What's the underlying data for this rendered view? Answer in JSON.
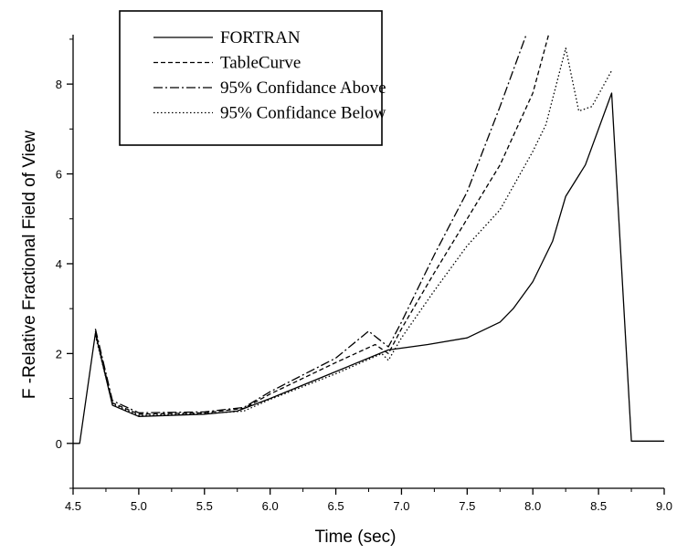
{
  "chart_data": {
    "type": "line",
    "xlabel": "Time (sec)",
    "ylabel": "F -Relative Fractional Field of View",
    "xlim": [
      4.5,
      9.0
    ],
    "ylim": [
      -1,
      9.1
    ],
    "xticks": [
      "4.5",
      "5.0",
      "5.5",
      "6.0",
      "6.5",
      "7.0",
      "7.5",
      "8.0",
      "8.5",
      "9.0"
    ],
    "yticks": [
      "0",
      "2",
      "4",
      "6",
      "8"
    ],
    "grid": false,
    "legend_position": "top-left",
    "series": [
      {
        "name": "FORTRAN",
        "style": "solid",
        "x": [
          4.5,
          4.55,
          4.67,
          4.8,
          5.0,
          5.2,
          5.5,
          5.75,
          6.0,
          6.5,
          6.9,
          7.2,
          7.5,
          7.75,
          7.85,
          8.0,
          8.15,
          8.25,
          8.4,
          8.6,
          8.75,
          9.0
        ],
        "y": [
          0,
          0,
          2.45,
          0.85,
          0.6,
          0.62,
          0.65,
          0.72,
          1.0,
          1.6,
          2.08,
          2.2,
          2.35,
          2.7,
          3.0,
          3.6,
          4.5,
          5.5,
          6.2,
          7.8,
          0.05,
          0.05
        ]
      },
      {
        "name": "TableCurve",
        "style": "dashed",
        "x": [
          4.67,
          4.8,
          5.0,
          5.5,
          5.8,
          6.0,
          6.5,
          6.8,
          6.9,
          7.0,
          7.25,
          7.5,
          7.75,
          8.0,
          8.12
        ],
        "y": [
          2.5,
          0.9,
          0.65,
          0.68,
          0.78,
          1.1,
          1.8,
          2.2,
          2.0,
          2.55,
          3.8,
          5.0,
          6.2,
          7.8,
          9.1
        ]
      },
      {
        "name": "95% Confidance Above",
        "style": "dash-dot",
        "x": [
          4.67,
          4.8,
          5.0,
          5.5,
          5.8,
          6.0,
          6.5,
          6.75,
          6.9,
          7.0,
          7.25,
          7.5,
          7.75,
          7.95
        ],
        "y": [
          2.55,
          0.95,
          0.68,
          0.7,
          0.8,
          1.15,
          1.9,
          2.5,
          2.15,
          2.7,
          4.2,
          5.6,
          7.5,
          9.1
        ]
      },
      {
        "name": "95% Confidance Below",
        "style": "dotted",
        "x": [
          4.67,
          4.8,
          5.0,
          5.5,
          5.8,
          6.0,
          6.5,
          6.85,
          6.9,
          7.0,
          7.25,
          7.5,
          7.75,
          8.0,
          8.1,
          8.25,
          8.35,
          8.45,
          8.6
        ],
        "y": [
          2.4,
          0.88,
          0.62,
          0.66,
          0.72,
          0.98,
          1.55,
          2.0,
          1.85,
          2.35,
          3.4,
          4.4,
          5.2,
          6.5,
          7.1,
          8.8,
          7.4,
          7.5,
          8.3
        ]
      }
    ]
  }
}
